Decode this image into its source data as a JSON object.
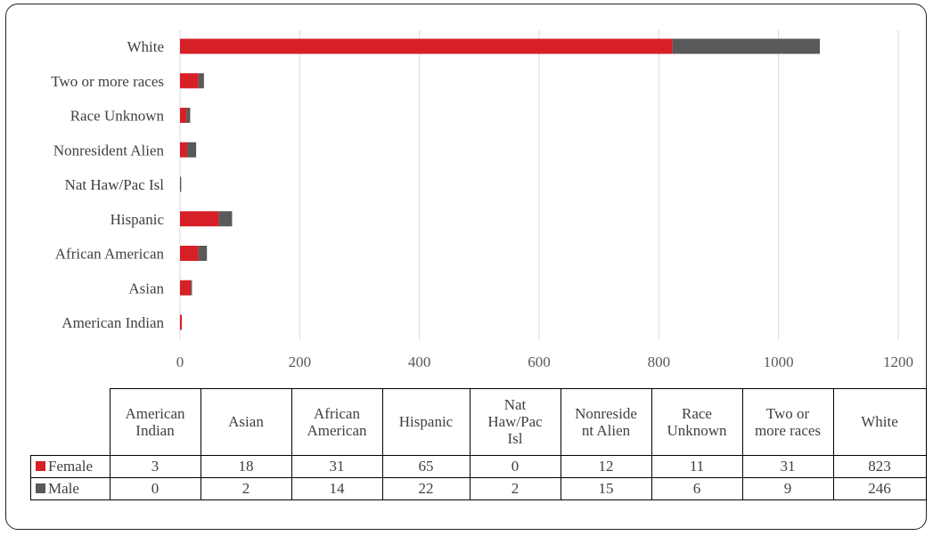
{
  "colors": {
    "female": "#d71f27",
    "male": "#595959",
    "grid": "#d9d9d9"
  },
  "chart_data": {
    "type": "bar",
    "orientation": "horizontal",
    "stacked": true,
    "categories": [
      "American Indian",
      "Asian",
      "African American",
      "Hispanic",
      "Nat Haw/Pac Isl",
      "Nonresident Alien",
      "Race Unknown",
      "Two or more races",
      "White"
    ],
    "series": [
      {
        "name": "Female",
        "values": [
          3,
          18,
          31,
          65,
          0,
          12,
          11,
          31,
          823
        ]
      },
      {
        "name": "Male",
        "values": [
          0,
          2,
          14,
          22,
          2,
          15,
          6,
          9,
          246
        ]
      }
    ],
    "xlim": [
      0,
      1200
    ],
    "xticks": [
      "0",
      "200",
      "400",
      "600",
      "800",
      "1000",
      "1200"
    ],
    "grid": "vertical",
    "data_table": true
  },
  "table": {
    "headers": [
      "American\nIndian",
      "Asian",
      "African\nAmerican",
      "Hispanic",
      "Nat\nHaw/Pac\nIsl",
      "Nonreside\nnt Alien",
      "Race\nUnknown",
      "Two or\nmore races",
      "White"
    ],
    "rows": [
      {
        "legend": "Female",
        "color_key": "female",
        "cells": [
          "3",
          "18",
          "31",
          "65",
          "0",
          "12",
          "11",
          "31",
          "823"
        ]
      },
      {
        "legend": "Male",
        "color_key": "male",
        "cells": [
          "0",
          "2",
          "14",
          "22",
          "2",
          "15",
          "6",
          "9",
          "246"
        ]
      }
    ]
  }
}
